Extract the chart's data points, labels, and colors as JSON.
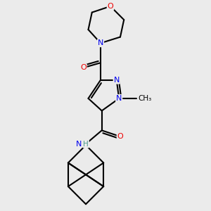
{
  "background_color": "#ebebeb",
  "bond_color": "#000000",
  "bond_width": 1.5,
  "atom_colors": {
    "N": "#0000ee",
    "O": "#ee0000",
    "C": "#000000",
    "H": "#4a9a8a"
  },
  "font_size": 8.0,
  "xlim": [
    -1.5,
    3.5
  ],
  "ylim": [
    -5.2,
    3.2
  ]
}
